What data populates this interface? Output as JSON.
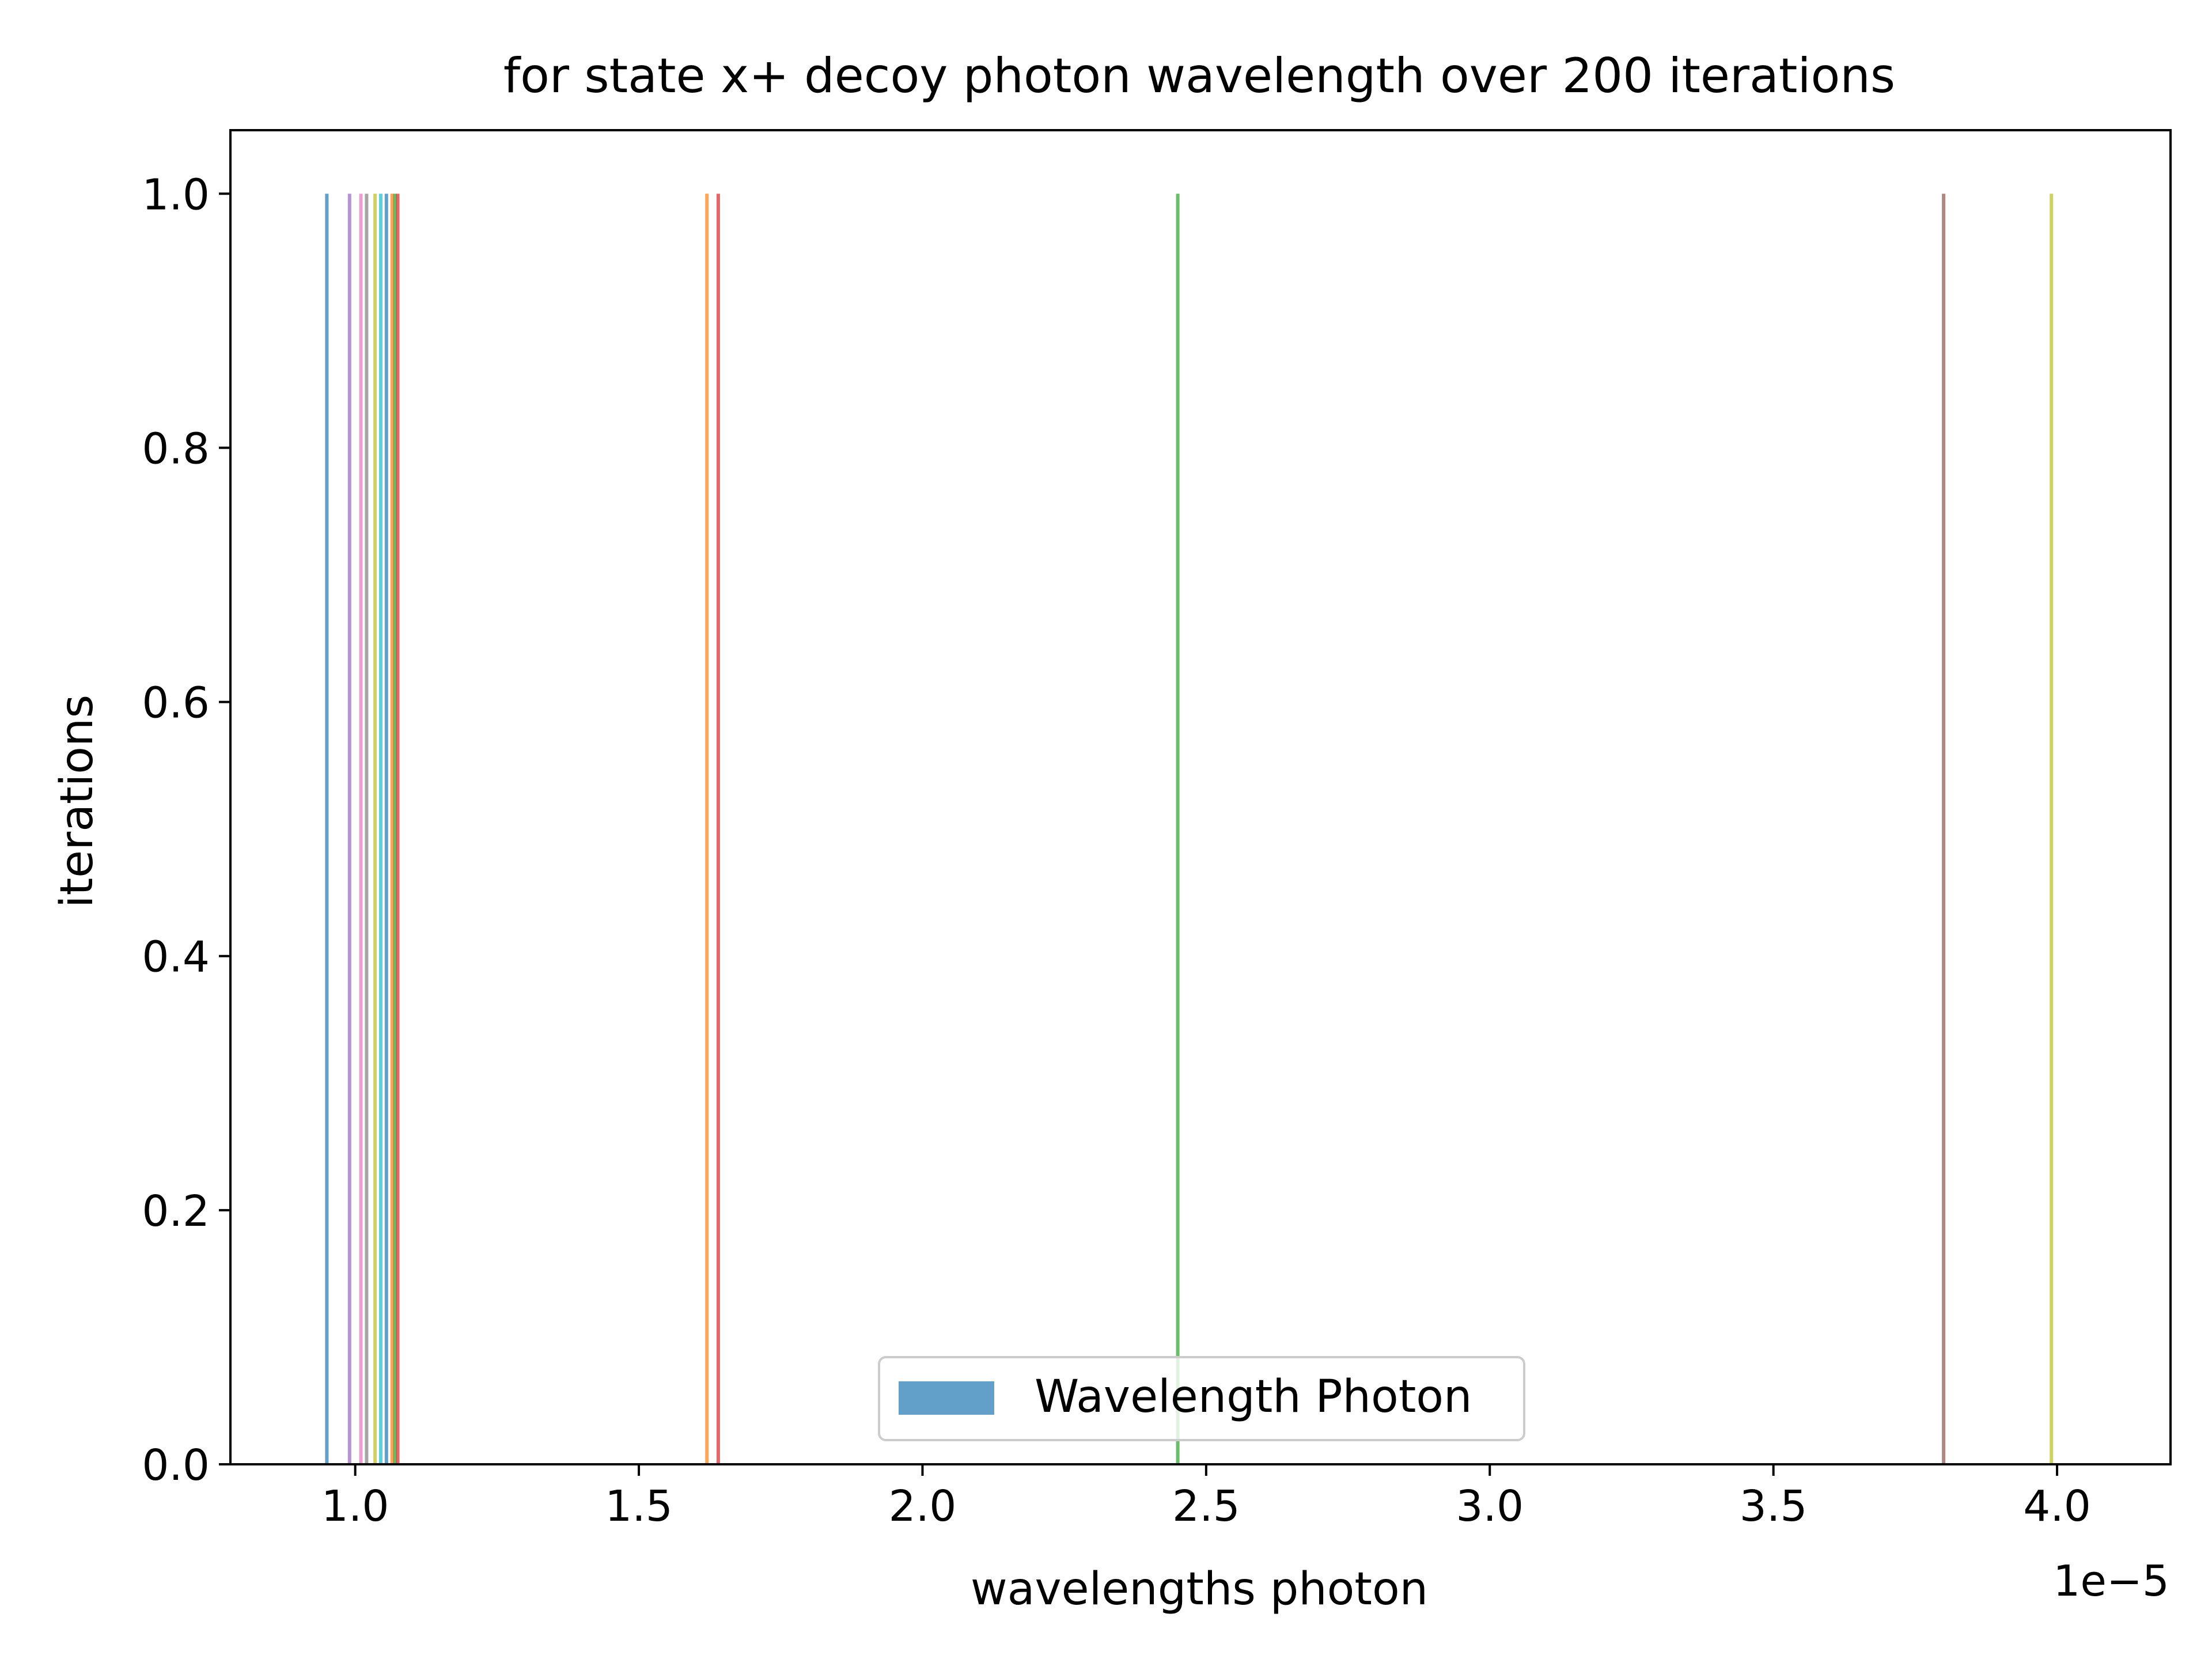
{
  "chart_data": {
    "type": "bar",
    "title": "for state x+ decoy photon wavelength over 200 iterations",
    "xlabel": "wavelengths photon",
    "ylabel": "iterations",
    "x_offset_label": "1e−5",
    "xlim": [
      0.78,
      4.2
    ],
    "ylim": [
      0.0,
      1.05
    ],
    "x_ticks": [
      1.0,
      1.5,
      2.0,
      2.5,
      3.0,
      3.5,
      4.0
    ],
    "x_tick_labels": [
      "1.0",
      "1.5",
      "2.0",
      "2.5",
      "3.0",
      "3.5",
      "4.0"
    ],
    "y_ticks": [
      0.0,
      0.2,
      0.4,
      0.6,
      0.8,
      1.0
    ],
    "y_tick_labels": [
      "0.0",
      "0.2",
      "0.4",
      "0.6",
      "0.8",
      "1.0"
    ],
    "grid": false,
    "legend": {
      "position": "lower center",
      "entries": [
        {
          "label": "Wavelength Photon",
          "color": "#1f77b4"
        }
      ]
    },
    "bars": [
      {
        "x": 0.95,
        "value": 1.0,
        "color": "#1f77b4"
      },
      {
        "x": 0.99,
        "value": 1.0,
        "color": "#9467bd"
      },
      {
        "x": 1.01,
        "value": 1.0,
        "color": "#e377c2"
      },
      {
        "x": 1.02,
        "value": 1.0,
        "color": "#7f7f7f"
      },
      {
        "x": 1.035,
        "value": 1.0,
        "color": "#bcbd22"
      },
      {
        "x": 1.045,
        "value": 1.0,
        "color": "#17becf"
      },
      {
        "x": 1.055,
        "value": 1.0,
        "color": "#1f77b4"
      },
      {
        "x": 1.065,
        "value": 1.0,
        "color": "#ff7f0e"
      },
      {
        "x": 1.07,
        "value": 1.0,
        "color": "#2ca02c"
      },
      {
        "x": 1.075,
        "value": 1.0,
        "color": "#d62728"
      },
      {
        "x": 1.62,
        "value": 1.0,
        "color": "#ff7f0e"
      },
      {
        "x": 1.64,
        "value": 1.0,
        "color": "#d62728"
      },
      {
        "x": 2.45,
        "value": 1.0,
        "color": "#2ca02c"
      },
      {
        "x": 3.8,
        "value": 1.0,
        "color": "#8c564b"
      },
      {
        "x": 3.99,
        "value": 1.0,
        "color": "#bcbd22"
      }
    ],
    "bar_alpha": 0.7
  }
}
